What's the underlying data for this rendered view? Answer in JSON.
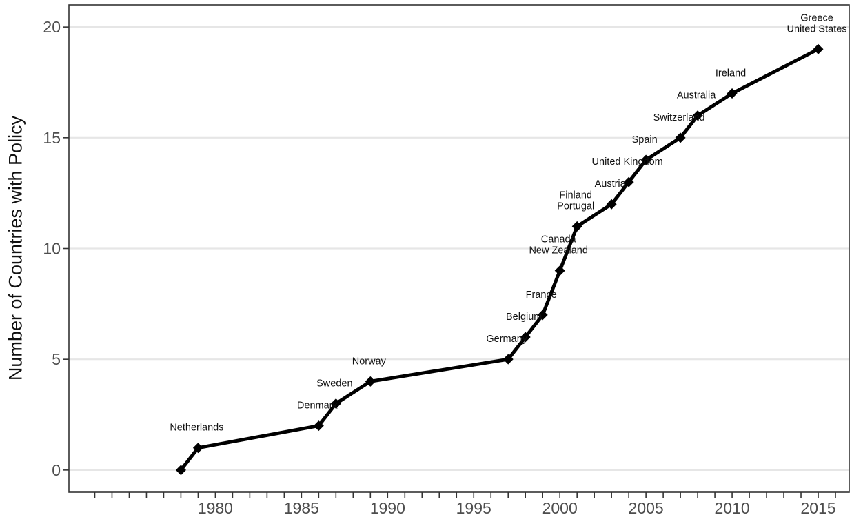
{
  "chart_data": {
    "type": "line",
    "title": "",
    "xlabel": "",
    "ylabel": "Number of Countries with Policy",
    "xlim": [
      1971.5,
      2016.8
    ],
    "ylim": [
      -1,
      21
    ],
    "x_ticks": [
      1980,
      1985,
      1990,
      1995,
      2000,
      2005,
      2010,
      2015
    ],
    "x_minor_ticks": [
      1973,
      1974,
      1975,
      1976,
      1977,
      1978,
      1979,
      1981,
      1982,
      1983,
      1984,
      1986,
      1987,
      1988,
      1989,
      1991,
      1992,
      1993,
      1994,
      1996,
      1997,
      1998,
      1999,
      2001,
      2002,
      2003,
      2004,
      2006,
      2007,
      2008,
      2009,
      2011,
      2012,
      2013,
      2014,
      2016
    ],
    "y_ticks": [
      0,
      5,
      10,
      15,
      20
    ],
    "grid": "horizontal",
    "marker": "diamond",
    "color": "#000000",
    "points": [
      {
        "x": 1978,
        "y": 0
      },
      {
        "x": 1979,
        "y": 1
      },
      {
        "x": 1986,
        "y": 2
      },
      {
        "x": 1987,
        "y": 3
      },
      {
        "x": 1989,
        "y": 4
      },
      {
        "x": 1997,
        "y": 5
      },
      {
        "x": 1998,
        "y": 6
      },
      {
        "x": 1999,
        "y": 7
      },
      {
        "x": 2000,
        "y": 9
      },
      {
        "x": 2001,
        "y": 11
      },
      {
        "x": 2003,
        "y": 12
      },
      {
        "x": 2004,
        "y": 13
      },
      {
        "x": 2005,
        "y": 14
      },
      {
        "x": 2007,
        "y": 15
      },
      {
        "x": 2008,
        "y": 16
      },
      {
        "x": 2010,
        "y": 17
      },
      {
        "x": 2015,
        "y": 19
      }
    ],
    "annotations": [
      {
        "text": "Netherlands",
        "x": 1979,
        "y": 1
      },
      {
        "text": "Denmark",
        "x": 1986,
        "y": 2
      },
      {
        "text": "Sweden",
        "x": 1987,
        "y": 3
      },
      {
        "text": "Norway",
        "x": 1989,
        "y": 4
      },
      {
        "text": "Germany",
        "x": 1997,
        "y": 5
      },
      {
        "text": "Belgium",
        "x": 1998,
        "y": 6
      },
      {
        "text": "France",
        "x": 1999,
        "y": 7
      },
      {
        "text": "New Zealand",
        "x": 2000,
        "y": 9
      },
      {
        "text": "Canada",
        "x": 2000,
        "y": 9
      },
      {
        "text": "Portugal",
        "x": 2001,
        "y": 11
      },
      {
        "text": "Finland",
        "x": 2001,
        "y": 11
      },
      {
        "text": "Austria",
        "x": 2003,
        "y": 12
      },
      {
        "text": "United Kingdom",
        "x": 2004,
        "y": 13
      },
      {
        "text": "Spain",
        "x": 2005,
        "y": 14
      },
      {
        "text": "Switzerland",
        "x": 2007,
        "y": 15
      },
      {
        "text": "Australia",
        "x": 2008,
        "y": 16
      },
      {
        "text": "Ireland",
        "x": 2010,
        "y": 17
      },
      {
        "text": "United States",
        "x": 2015,
        "y": 19
      },
      {
        "text": "Greece",
        "x": 2015,
        "y": 19
      }
    ]
  }
}
